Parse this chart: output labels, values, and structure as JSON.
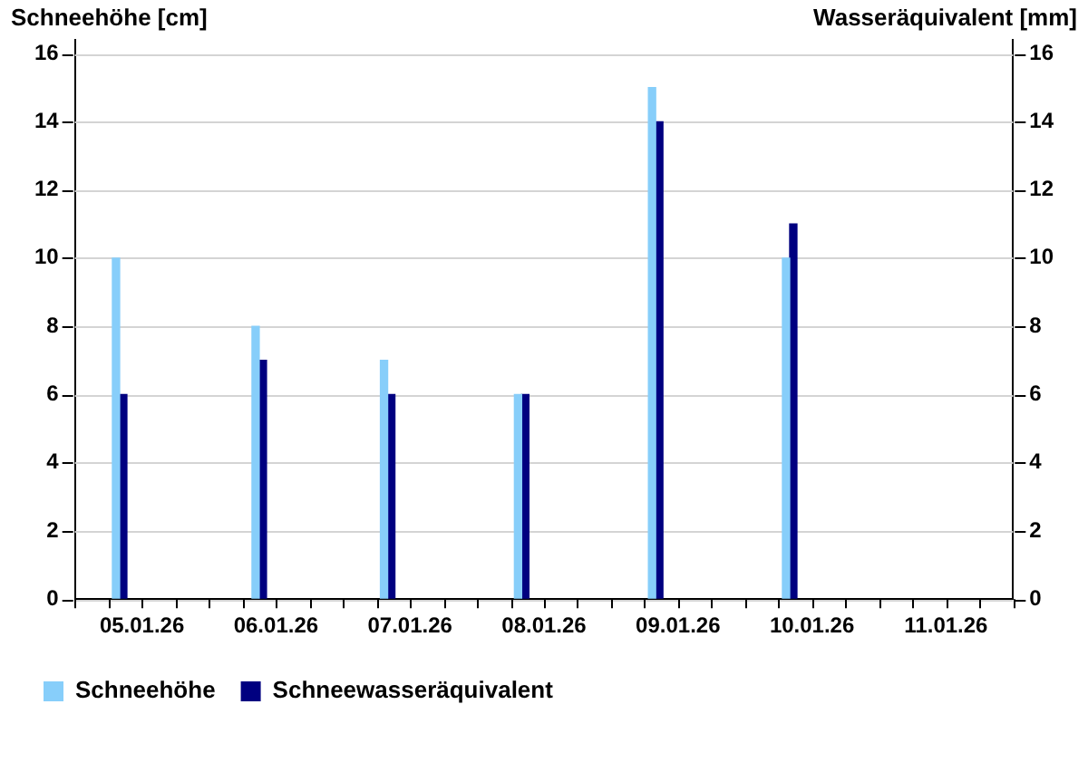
{
  "chart_data": {
    "type": "bar",
    "ylabel": "Schneehöhe [cm]",
    "y2label": "Wasseräquivalent [mm]",
    "x": [
      "--01-05T08:00",
      "--01-06T09:00",
      "--01-07T08:00",
      "--01-08T08:00",
      "--01-09T08:00",
      "--01-10T08:00"
    ],
    "xlim": [
      "--01-05T00:00",
      "--01-12T00:00"
    ],
    "xticks": [
      {
        "value": "--01-05T00:00",
        "label": null
      },
      {
        "value": "--01-05T06:00",
        "label": null
      },
      {
        "value": "--01-05T12:00",
        "label": "05.01.26"
      },
      {
        "value": "--01-05T18:00",
        "label": null
      },
      {
        "value": "--01-06T00:00",
        "label": null
      },
      {
        "value": "--01-06T06:00",
        "label": null
      },
      {
        "value": "--01-06T12:00",
        "label": "06.01.26"
      },
      {
        "value": "--01-06T18:00",
        "label": null
      },
      {
        "value": "--01-07T00:00",
        "label": null
      },
      {
        "value": "--01-07T06:00",
        "label": null
      },
      {
        "value": "--01-07T12:00",
        "label": "07.01.26"
      },
      {
        "value": "--01-07T18:00",
        "label": null
      },
      {
        "value": "--01-08T00:00",
        "label": null
      },
      {
        "value": "--01-08T06:00",
        "label": null
      },
      {
        "value": "--01-08T12:00",
        "label": "08.01.26"
      },
      {
        "value": "--01-08T18:00",
        "label": null
      },
      {
        "value": "--01-09T00:00",
        "label": null
      },
      {
        "value": "--01-09T06:00",
        "label": null
      },
      {
        "value": "--01-09T12:00",
        "label": "09.01.26"
      },
      {
        "value": "--01-09T18:00",
        "label": null
      },
      {
        "value": "--01-10T00:00",
        "label": null
      },
      {
        "value": "--01-10T06:00",
        "label": null
      },
      {
        "value": "--01-10T12:00",
        "label": "10.01.26"
      },
      {
        "value": "--01-10T18:00",
        "label": null
      },
      {
        "value": "--01-11T00:00",
        "label": null
      },
      {
        "value": "--01-11T06:00",
        "label": null
      },
      {
        "value": "--01-11T12:00",
        "label": "11.01.26"
      },
      {
        "value": "--01-11T18:00",
        "label": null
      },
      {
        "value": "--01-12T00:00",
        "label": null
      }
    ],
    "series": [
      {
        "name": "Schneehöhe",
        "color": "#87cefa",
        "values": [
          10,
          8,
          7,
          6,
          15,
          10
        ]
      },
      {
        "name": "Schneewasseräquivalent",
        "color": "#000080",
        "values": [
          6,
          7,
          6,
          6,
          14,
          11
        ],
        "axis": "y2"
      }
    ],
    "ylim": [
      0,
      16.4
    ],
    "yticks": [
      0,
      2,
      4,
      6,
      8,
      10,
      12,
      14,
      16
    ],
    "y2lim": [
      0,
      16.4
    ],
    "y2ticks": [
      0,
      2,
      4,
      6,
      8,
      10,
      12,
      14,
      16
    ],
    "grid": "y",
    "legend": "bottom left"
  }
}
